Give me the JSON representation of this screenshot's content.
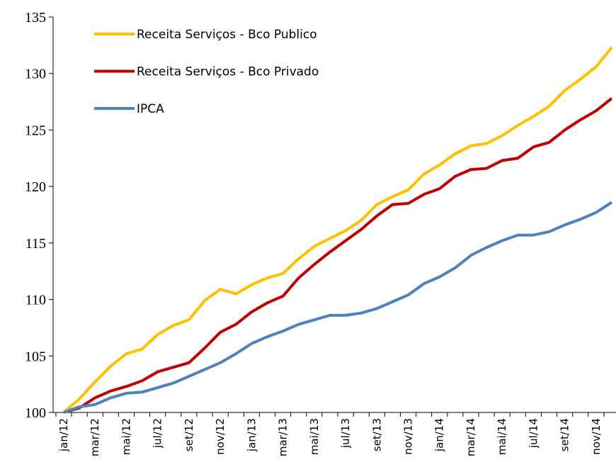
{
  "chart_data": {
    "type": "line",
    "categories": [
      "jan/12",
      null,
      "mar/12",
      null,
      "mai/12",
      null,
      "jul/12",
      null,
      "set/12",
      null,
      "nov/12",
      null,
      "jan/13",
      null,
      "mar/13",
      null,
      "mai/13",
      null,
      "jul/13",
      null,
      "set/13",
      null,
      "nov/13",
      null,
      "jan/14",
      null,
      "mar/14",
      null,
      "mai/14",
      null,
      "jul/14",
      null,
      "set/14",
      null,
      "nov/14",
      null
    ],
    "series": [
      {
        "name": "Receita Serviços - Bco Publico",
        "color": "#FFC000",
        "values": [
          100,
          101.2,
          102.7,
          104.1,
          105.2,
          105.6,
          106.9,
          107.7,
          108.2,
          109.9,
          110.9,
          110.5,
          111.3,
          111.9,
          112.3,
          113.6,
          114.7,
          115.4,
          116.1,
          117.0,
          118.4,
          119.1,
          119.7,
          121.1,
          121.9,
          122.9,
          123.6,
          123.8,
          124.5,
          125.4,
          126.2,
          127.1,
          128.5,
          129.5,
          130.6,
          132.3
        ]
      },
      {
        "name": "Receita Serviços - Bco Privado",
        "color": "#C00000",
        "values": [
          100,
          100.4,
          101.3,
          101.9,
          102.3,
          102.8,
          103.6,
          104.0,
          104.4,
          105.7,
          107.1,
          107.8,
          108.9,
          109.7,
          110.3,
          111.9,
          113.1,
          114.2,
          115.2,
          116.2,
          117.4,
          118.4,
          118.5,
          119.3,
          119.8,
          120.9,
          121.5,
          121.6,
          122.3,
          122.5,
          123.5,
          123.9,
          125.0,
          125.9,
          126.7,
          127.8
        ]
      },
      {
        "name": "IPCA",
        "color": "#4F81BD",
        "values": [
          100,
          100.5,
          100.7,
          101.3,
          101.7,
          101.8,
          102.2,
          102.6,
          103.2,
          103.8,
          104.4,
          105.2,
          106.1,
          106.7,
          107.2,
          107.8,
          108.2,
          108.6,
          108.6,
          108.8,
          109.2,
          109.8,
          110.4,
          111.4,
          112.0,
          112.8,
          113.9,
          114.6,
          115.2,
          115.7,
          115.7,
          116.0,
          116.6,
          117.1,
          117.7,
          118.6
        ]
      }
    ],
    "ylim": [
      100,
      135
    ],
    "yticks": [
      100,
      105,
      110,
      115,
      120,
      125,
      130,
      135
    ]
  }
}
